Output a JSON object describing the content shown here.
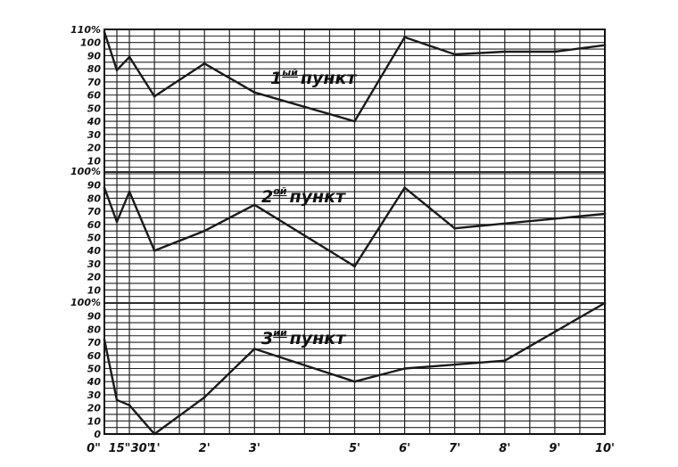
{
  "chart_data": [
    {
      "type": "line",
      "title": "1 ый пункт",
      "title_number": "1",
      "title_superscript": "ый",
      "title_word": "пункт",
      "y_tick_labels": [
        "110%",
        "100",
        "90",
        "80",
        "70",
        "60",
        "50",
        "40",
        "30",
        "20",
        "10"
      ],
      "ylim": [
        0,
        110
      ],
      "grid": true,
      "x": [
        0,
        0.25,
        0.5,
        1,
        2,
        3,
        5,
        6,
        7,
        8,
        9,
        10
      ],
      "values": [
        108,
        79,
        89,
        59,
        84,
        62,
        40,
        104,
        91,
        93,
        93,
        98
      ]
    },
    {
      "type": "line",
      "title": "2 ой пункт",
      "title_number": "2",
      "title_superscript": "ой",
      "title_word": "пункт",
      "y_tick_labels": [
        "100%",
        "90",
        "80",
        "70",
        "60",
        "50",
        "40",
        "30",
        "20",
        "10"
      ],
      "ylim": [
        0,
        100
      ],
      "grid": true,
      "x": [
        0,
        0.25,
        0.5,
        1,
        2,
        3,
        5,
        6,
        7,
        10
      ],
      "values": [
        88,
        62,
        85,
        40,
        55,
        75,
        28,
        88,
        57,
        68
      ]
    },
    {
      "type": "line",
      "title": "3 ий пункт",
      "title_number": "3",
      "title_superscript": "ий",
      "title_word": "пункт",
      "y_tick_labels": [
        "100%",
        "90",
        "80",
        "70",
        "60",
        "50",
        "40",
        "30",
        "20",
        "10",
        "0"
      ],
      "ylim": [
        0,
        100
      ],
      "grid": true,
      "x": [
        0,
        0.25,
        0.5,
        1,
        2,
        3,
        5,
        6,
        7,
        8,
        10
      ],
      "values": [
        72,
        26,
        22,
        0,
        28,
        65,
        40,
        50,
        53,
        56,
        100
      ]
    }
  ],
  "x_axis": {
    "tick_labels": [
      "0\"",
      "15\"",
      "30\"",
      "1'",
      "2'",
      "3'",
      "5'",
      "6'",
      "7'",
      "8'",
      "9'",
      "10'"
    ],
    "positions": [
      0,
      0.25,
      0.5,
      1,
      2,
      3,
      5,
      6,
      7,
      8,
      9,
      10
    ]
  }
}
